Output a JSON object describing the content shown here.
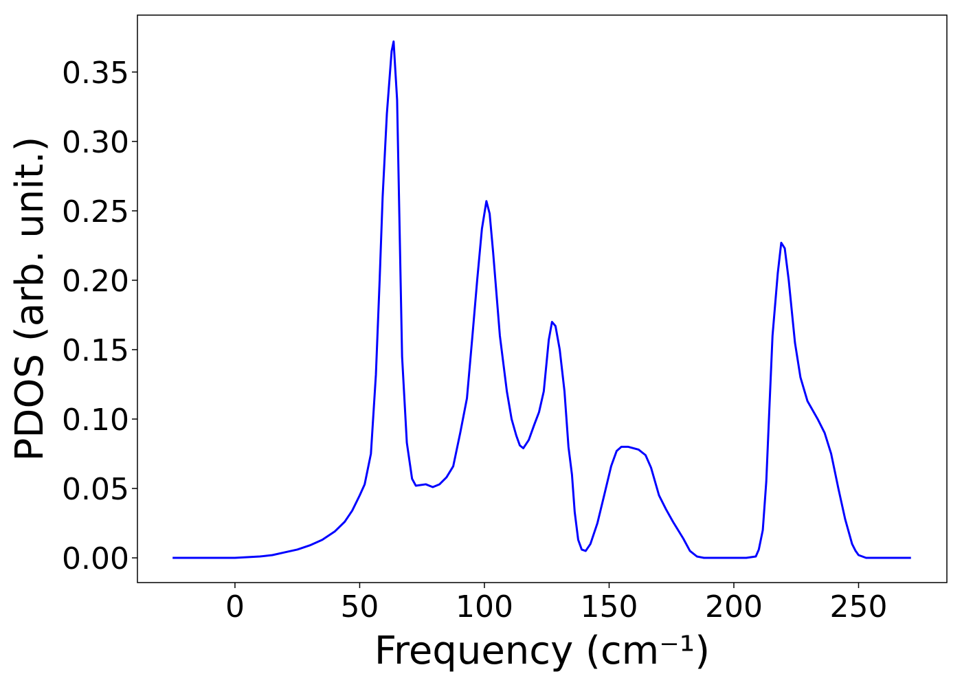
{
  "chart_data": {
    "type": "line",
    "xlabel": "Frequency (cm⁻¹)",
    "ylabel": "PDOS (arb. unit.)",
    "xlim": [
      -39.1,
      285.4
    ],
    "ylim": [
      -0.0178,
      0.391
    ],
    "xticks": [
      0,
      50,
      100,
      150,
      200,
      250
    ],
    "yticks": [
      {
        "value": 0,
        "label": "0.00"
      },
      {
        "value": 0.05,
        "label": "0.05"
      },
      {
        "value": 0.1,
        "label": "0.10"
      },
      {
        "value": 0.15,
        "label": "0.15"
      },
      {
        "value": 0.2,
        "label": "0.20"
      },
      {
        "value": 0.25,
        "label": "0.25"
      },
      {
        "value": 0.3,
        "label": "0.30"
      },
      {
        "value": 0.35,
        "label": "0.35"
      }
    ],
    "grid": false,
    "series": [
      {
        "color": "#0000ff",
        "x": [
          -25,
          0,
          5,
          10,
          15,
          20,
          25,
          30,
          35,
          40,
          44,
          47,
          50,
          52,
          54.5,
          56.5,
          58,
          59.2,
          60.9,
          62.8,
          63.6,
          65,
          67,
          68.9,
          71,
          72.5,
          76.5,
          79.3,
          82,
          84.8,
          87.5,
          90.3,
          93,
          95.2,
          97.1,
          99,
          100.8,
          102.1,
          103.5,
          106.2,
          109,
          110.9,
          112.8,
          114.2,
          115.6,
          117.8,
          120,
          121.9,
          123.8,
          125.8,
          127.1,
          128.5,
          130.2,
          132.1,
          133.7,
          135.1,
          136.2,
          137.6,
          139,
          140.6,
          142.5,
          145.3,
          148,
          150.8,
          153,
          154.9,
          157.7,
          161.8,
          164.6,
          166.8,
          170,
          172.8,
          175.6,
          179.7,
          182.4,
          185.2,
          188,
          205,
          208.8,
          210,
          211.6,
          213,
          214.3,
          215.5,
          217.6,
          219,
          220.4,
          222,
          224.5,
          226.7,
          229.5,
          233.6,
          236.4,
          239,
          241.9,
          244.6,
          247.4,
          248.8,
          250,
          253,
          271
        ],
        "values": [
          0,
          0,
          0.0005,
          0.001,
          0.002,
          0.004,
          0.006,
          0.009,
          0.013,
          0.019,
          0.026,
          0.034,
          0.045,
          0.053,
          0.075,
          0.132,
          0.2,
          0.26,
          0.32,
          0.365,
          0.372,
          0.33,
          0.145,
          0.083,
          0.057,
          0.052,
          0.053,
          0.051,
          0.053,
          0.058,
          0.066,
          0.09,
          0.115,
          0.16,
          0.2,
          0.237,
          0.257,
          0.248,
          0.22,
          0.16,
          0.12,
          0.1,
          0.088,
          0.081,
          0.079,
          0.085,
          0.096,
          0.105,
          0.12,
          0.157,
          0.17,
          0.167,
          0.15,
          0.12,
          0.08,
          0.06,
          0.033,
          0.013,
          0.006,
          0.005,
          0.01,
          0.025,
          0.045,
          0.066,
          0.077,
          0.08,
          0.08,
          0.078,
          0.074,
          0.065,
          0.045,
          0.035,
          0.026,
          0.014,
          0.005,
          0.001,
          0,
          0,
          0.001,
          0.006,
          0.02,
          0.055,
          0.11,
          0.16,
          0.205,
          0.227,
          0.223,
          0.2,
          0.155,
          0.13,
          0.113,
          0.1,
          0.09,
          0.075,
          0.05,
          0.028,
          0.01,
          0.005,
          0.002,
          0,
          0
        ]
      }
    ]
  }
}
